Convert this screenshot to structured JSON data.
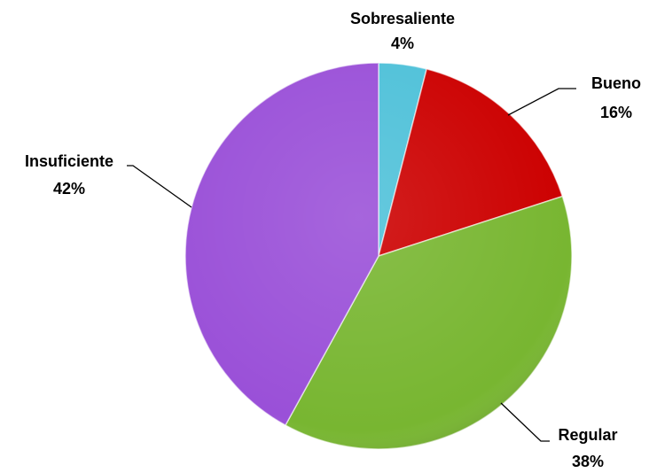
{
  "chart_data": {
    "type": "pie",
    "categories": [
      "Sobresaliente",
      "Bueno",
      "Regular",
      "Insuficiente"
    ],
    "values": [
      4,
      16,
      38,
      42
    ],
    "value_labels": [
      "4%",
      "16%",
      "38%",
      "42%"
    ],
    "colors": [
      "#4fc1d9",
      "#cc0000",
      "#78b631",
      "#9a50d8"
    ]
  }
}
